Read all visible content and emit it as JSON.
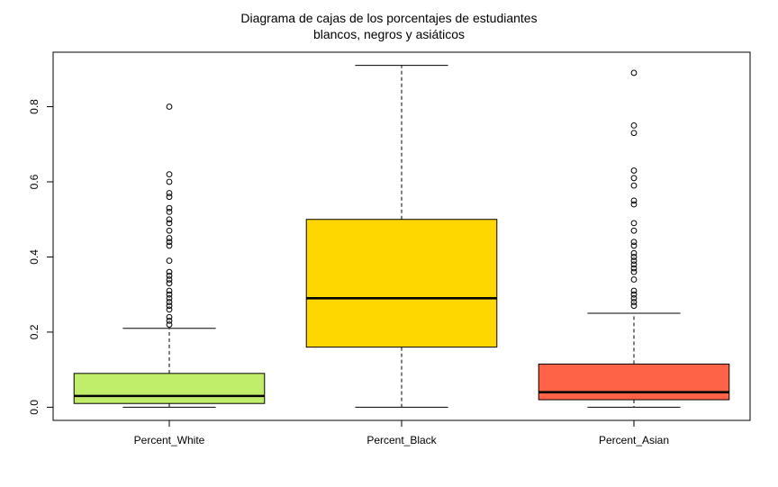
{
  "chart_data": {
    "type": "boxplot",
    "title_line1": "Diagrama de cajas de los porcentajes de estudiantes",
    "title_line2": "blancos, negros y asiáticos",
    "xlabel": "",
    "ylabel": "",
    "ylim": [
      -0.035,
      0.945
    ],
    "y_ticks": [
      0.0,
      0.2,
      0.4,
      0.6,
      0.8
    ],
    "y_tick_labels": [
      "0.0",
      "0.2",
      "0.4",
      "0.6",
      "0.8"
    ],
    "grid": false,
    "categories": [
      "Percent_White",
      "Percent_Black",
      "Percent_Asian"
    ],
    "series": [
      {
        "category": "Percent_White",
        "color": "#C0EE6A",
        "whisker_low": 0.0,
        "q1": 0.01,
        "median": 0.03,
        "q3": 0.09,
        "whisker_high": 0.21,
        "outliers": [
          0.22,
          0.23,
          0.24,
          0.26,
          0.27,
          0.28,
          0.29,
          0.3,
          0.31,
          0.33,
          0.34,
          0.35,
          0.36,
          0.39,
          0.43,
          0.44,
          0.45,
          0.47,
          0.49,
          0.5,
          0.52,
          0.53,
          0.56,
          0.57,
          0.6,
          0.62,
          0.8
        ]
      },
      {
        "category": "Percent_Black",
        "color": "#FFD700",
        "whisker_low": 0.0,
        "q1": 0.16,
        "median": 0.29,
        "q3": 0.5,
        "whisker_high": 0.91,
        "outliers": []
      },
      {
        "category": "Percent_Asian",
        "color": "#FF6347",
        "whisker_low": 0.0,
        "q1": 0.02,
        "median": 0.04,
        "q3": 0.115,
        "whisker_high": 0.25,
        "outliers": [
          0.27,
          0.28,
          0.29,
          0.3,
          0.31,
          0.34,
          0.36,
          0.37,
          0.38,
          0.39,
          0.4,
          0.41,
          0.43,
          0.44,
          0.47,
          0.49,
          0.54,
          0.55,
          0.59,
          0.61,
          0.63,
          0.73,
          0.75,
          0.89
        ]
      }
    ]
  }
}
